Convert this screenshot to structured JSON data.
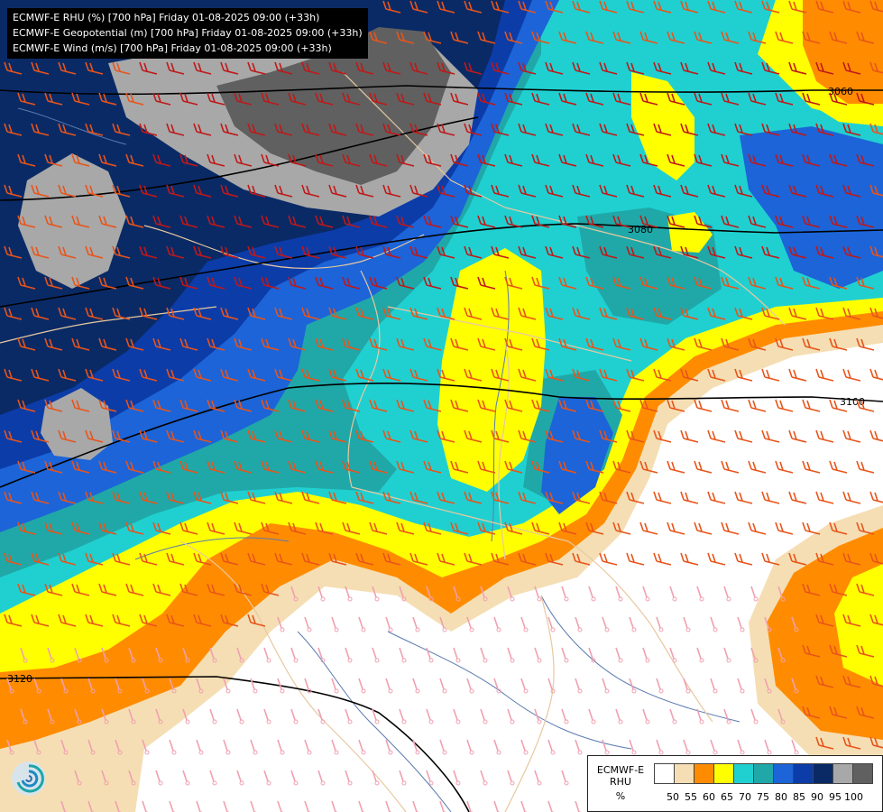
{
  "title_lines": [
    "ECMWF-E RHU (%) [700 hPa] Friday 01-08-2025 09:00 (+33h)",
    "ECMWF-E Geopotential (m) [700 hPa] Friday 01-08-2025 09:00 (+33h)",
    "ECMWF-E Wind (m/s) [700 hPa] Friday 01-08-2025 09:00 (+33h)"
  ],
  "legend": {
    "title_line1": "ECMWF-E",
    "title_line2": "RHU",
    "unit": "%",
    "ticks": [
      "50",
      "55",
      "60",
      "65",
      "70",
      "75",
      "80",
      "85",
      "90",
      "95",
      "100"
    ],
    "colors": [
      "#ffffff",
      "#f5deb3",
      "#ff8c00",
      "#ffff00",
      "#20d0d0",
      "#20a8a8",
      "#1c64d8",
      "#0c3ca8",
      "#0a2a66",
      "#a8a8a8",
      "#606060"
    ]
  },
  "contours": [
    {
      "label": "3060"
    },
    {
      "label": "3080"
    },
    {
      "label": "3100"
    },
    {
      "label": "3120"
    }
  ],
  "colors": {
    "wind_warm": "#e8541a",
    "wind_dark": "#c01818",
    "wind_light": "#f0a0b0",
    "borders": "#e8c8a0",
    "rivers": "#5a7ab0",
    "contour": "#000000"
  }
}
